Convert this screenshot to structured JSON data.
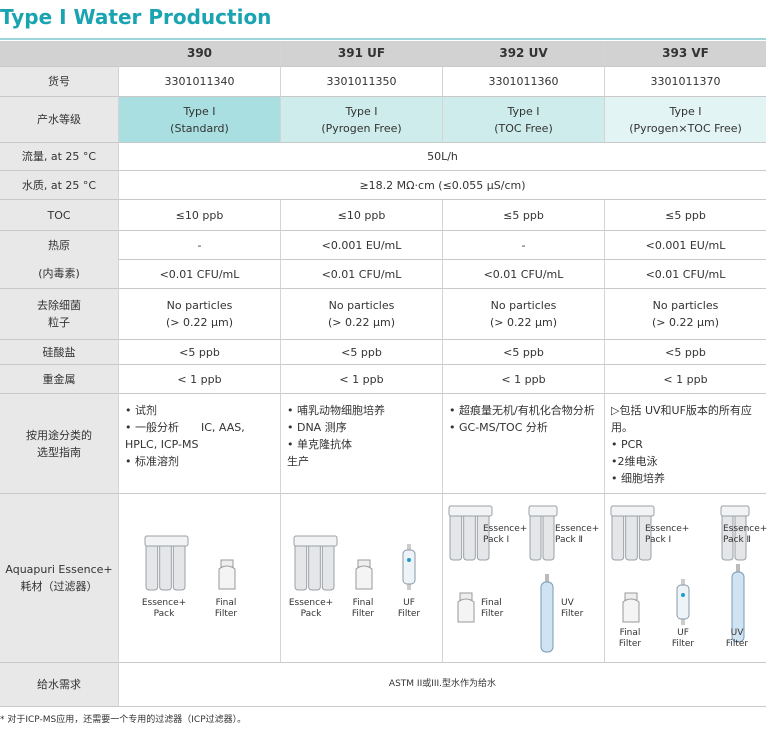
{
  "title": "Type Ⅰ Water Production",
  "columns": [
    "390",
    "391 UF",
    "392 UV",
    "393 VF"
  ],
  "rows": {
    "catalog": {
      "label": "货号",
      "cells": [
        "3301011340",
        "3301011350",
        "3301011360",
        "3301011370"
      ]
    },
    "grade": {
      "label": "产水等级",
      "cells": [
        [
          "Type Ⅰ",
          "(Standard)"
        ],
        [
          "Type Ⅰ",
          "(Pyrogen Free)"
        ],
        [
          "Type Ⅰ",
          "(TOC Free)"
        ],
        [
          "Type Ⅰ",
          "(Pyrogen×TOC Free)"
        ]
      ]
    },
    "flow": {
      "label": "流量, at 25 °C",
      "value": "50L/h"
    },
    "quality": {
      "label": "水质, at 25 °C",
      "value": "≥18.2 MΩ·cm (≤0.055 µS/cm)"
    },
    "toc": {
      "label": "TOC",
      "cells": [
        "≤10 ppb",
        "≤10 ppb",
        "≤5 ppb",
        "≤5 ppb"
      ]
    },
    "pyrogen": {
      "label": [
        "热原",
        "(内毒素)"
      ],
      "cells": [
        "-",
        "<0.001 EU/mL",
        "-",
        "<0.001 EU/mL"
      ],
      "cells2": [
        "<0.01 CFU/mL",
        "<0.01 CFU/mL",
        "<0.01 CFU/mL",
        "<0.01 CFU/mL"
      ]
    },
    "particles": {
      "label": [
        "去除细菌",
        "粒子"
      ],
      "cells": [
        [
          "No particles",
          "(> 0.22 µm)"
        ],
        [
          "No particles",
          "(> 0.22 µm)"
        ],
        [
          "No particles",
          "(> 0.22 µm)"
        ],
        [
          "No particles",
          "(> 0.22 µm)"
        ]
      ]
    },
    "silicate": {
      "label": "硅酸盐",
      "cells": [
        "<5 ppb",
        "<5 ppb",
        "<5 ppb",
        "<5 ppb"
      ]
    },
    "metals": {
      "label": "重金属",
      "cells": [
        "< 1 ppb",
        "< 1 ppb",
        "< 1 ppb",
        "< 1 ppb"
      ]
    },
    "applications": {
      "label": [
        "按用途分类的",
        "选型指南"
      ],
      "cells": [
        [
          "• 试剂",
          "• 一般分析　　IC, AAS,",
          "HPLC, ICP-MS",
          "• 标准溶剂"
        ],
        [
          "• 哺乳动物细胞培养",
          "• DNA 测序",
          "• 单克隆抗体",
          "生产"
        ],
        [
          "• 超痕量无机/有机化合物分析",
          "• GC-MS/TOC 分析"
        ],
        [
          "▷包括 UV和UF版本的所有应用。",
          "• PCR",
          "•2维电泳",
          "• 细胞培养"
        ]
      ]
    },
    "consumables": {
      "label": [
        "Aquapuri Essence+",
        "耗材（过滤器）"
      ],
      "cells": [
        [
          [
            "Essence+",
            "Pack"
          ],
          [
            "Final",
            "Filter"
          ]
        ],
        [
          [
            "Essence+",
            "Pack"
          ],
          [
            "Final",
            "Filter"
          ],
          [
            "UF",
            "Filter"
          ]
        ],
        [
          [
            "Essence+",
            "Pack Ⅰ"
          ],
          [
            "Essence+",
            "Pack Ⅱ"
          ],
          [
            "Final",
            "Filter"
          ],
          [
            "UV",
            "Filter"
          ]
        ],
        [
          [
            "Essence+",
            "Pack Ⅰ"
          ],
          [
            "Essence+",
            "Pack Ⅱ"
          ],
          [
            "Final",
            "Filter"
          ],
          [
            "UF",
            "Filter"
          ],
          [
            "UV",
            "Filter"
          ]
        ]
      ]
    },
    "feed": {
      "label": "给水需求",
      "value": "ASTM II或III.型水作为给水"
    }
  },
  "footnote": "* 对于ICP-MS应用，还需要一个专用的过滤器（ICP过滤器）。"
}
